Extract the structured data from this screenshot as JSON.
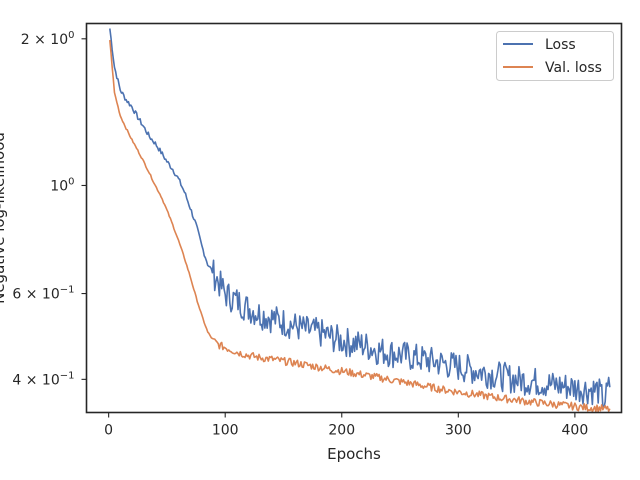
{
  "chart_data": {
    "type": "line",
    "title": "",
    "xlabel": "Epochs",
    "ylabel": "Negative log-likelihood",
    "yscale": "log",
    "xlim": [
      -19,
      440
    ],
    "ylim": [
      0.342,
      2.15
    ],
    "xticks": [
      0,
      100,
      200,
      300,
      400
    ],
    "xtick_labels": [
      "0",
      "100",
      "200",
      "300",
      "400"
    ],
    "yticks": [
      {
        "value": 2.0,
        "base": "2 × 10",
        "exp": "0"
      },
      {
        "value": 1.0,
        "base": "10",
        "exp": "0"
      },
      {
        "value": 0.6,
        "base": "6 × 10",
        "exp": "−1"
      },
      {
        "value": 0.4,
        "base": "4 × 10",
        "exp": "−1"
      }
    ],
    "grid": false,
    "legend": {
      "position": "top-right"
    },
    "series": [
      {
        "name": "Loss",
        "color": "#4c72b0",
        "x": [
          1,
          5,
          10,
          15,
          20,
          25,
          30,
          35,
          40,
          45,
          50,
          55,
          60,
          65,
          70,
          75,
          80,
          85,
          90,
          95,
          100,
          110,
          120,
          130,
          140,
          150,
          160,
          170,
          180,
          190,
          200,
          210,
          220,
          230,
          240,
          250,
          260,
          270,
          280,
          290,
          300,
          310,
          320,
          330,
          340,
          350,
          360,
          370,
          380,
          390,
          400,
          410,
          420,
          425,
          430
        ],
        "y": [
          2.1,
          1.75,
          1.57,
          1.5,
          1.45,
          1.38,
          1.32,
          1.26,
          1.22,
          1.17,
          1.12,
          1.08,
          1.03,
          0.97,
          0.9,
          0.83,
          0.75,
          0.69,
          0.66,
          0.63,
          0.6,
          0.58,
          0.56,
          0.545,
          0.535,
          0.525,
          0.515,
          0.505,
          0.5,
          0.49,
          0.48,
          0.475,
          0.47,
          0.46,
          0.455,
          0.45,
          0.445,
          0.44,
          0.435,
          0.43,
          0.425,
          0.42,
          0.415,
          0.41,
          0.405,
          0.4,
          0.398,
          0.395,
          0.39,
          0.388,
          0.385,
          0.382,
          0.38,
          0.36,
          0.39
        ]
      },
      {
        "name": "Val. loss",
        "color": "#dd8452",
        "x": [
          1,
          5,
          10,
          15,
          20,
          25,
          30,
          35,
          40,
          45,
          50,
          55,
          60,
          65,
          70,
          75,
          80,
          85,
          90,
          95,
          100,
          110,
          120,
          130,
          140,
          150,
          160,
          170,
          180,
          190,
          200,
          210,
          220,
          230,
          240,
          250,
          260,
          270,
          280,
          290,
          300,
          310,
          320,
          330,
          340,
          350,
          360,
          370,
          380,
          390,
          400,
          410,
          420,
          425,
          430
        ],
        "y": [
          1.99,
          1.55,
          1.39,
          1.31,
          1.24,
          1.18,
          1.12,
          1.06,
          1.0,
          0.95,
          0.89,
          0.83,
          0.77,
          0.71,
          0.65,
          0.59,
          0.54,
          0.5,
          0.48,
          0.47,
          0.465,
          0.455,
          0.448,
          0.443,
          0.44,
          0.436,
          0.432,
          0.428,
          0.424,
          0.42,
          0.416,
          0.412,
          0.408,
          0.404,
          0.4,
          0.396,
          0.392,
          0.388,
          0.384,
          0.38,
          0.377,
          0.374,
          0.371,
          0.368,
          0.365,
          0.363,
          0.36,
          0.358,
          0.356,
          0.354,
          0.352,
          0.35,
          0.349,
          0.348,
          0.347
        ]
      }
    ]
  }
}
